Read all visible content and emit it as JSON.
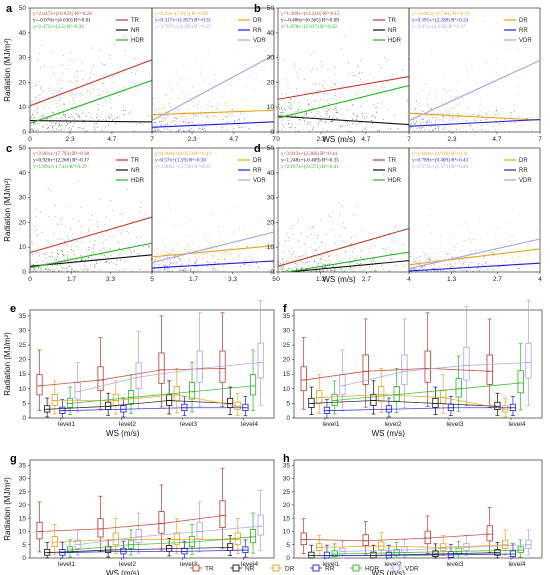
{
  "colors": {
    "TR": "#c0392b",
    "NR": "#111111",
    "DR": "#e8a317",
    "RR": "#1f1fd6",
    "HDR": "#22b822",
    "VDR": "#a9a2e8"
  },
  "chart_data": {
    "scatter_panels": [
      {
        "label": "a",
        "xlabel": "",
        "ylabel": "Radiation (MJ/m²)",
        "xlim": [
          0,
          7
        ],
        "ylim": [
          0,
          50
        ],
        "x_ticks": [
          "0",
          "2.3",
          "4.7",
          "7"
        ],
        "y_ticks": [
          "0",
          "10",
          "20",
          "30",
          "40",
          "50"
        ],
        "left": {
          "legend": [
            "TR",
            "NR",
            "HDR"
          ],
          "equations": [
            {
              "text": "y=2.647x+(10.621)  R²=0.24",
              "series": "TR"
            },
            {
              "text": "y=-0.076x+(4.636)  R²=0.01",
              "series": "NR"
            },
            {
              "text": "y=2.471x+(3.5)  R²=0.36",
              "series": "HDR"
            }
          ],
          "lines": [
            {
              "series": "TR",
              "slope": 2.647,
              "intercept": 10.6
            },
            {
              "series": "NR",
              "slope": -0.076,
              "intercept": 4.6
            },
            {
              "series": "HDR",
              "slope": 2.471,
              "intercept": 3.5
            }
          ]
        },
        "right": {
          "legend": [
            "DR",
            "RR",
            "VDR"
          ],
          "equations": [
            {
              "text": "y=0.25x+(7.011)  R²=0.05",
              "series": "DR"
            },
            {
              "text": "y=0.317x+(1.857)  R²=0.31",
              "series": "RR"
            },
            {
              "text": "y=3.787x+(4.596)  R²=0.37",
              "series": "VDR"
            }
          ],
          "lines": [
            {
              "series": "DR",
              "slope": 0.25,
              "intercept": 7.0
            },
            {
              "series": "RR",
              "slope": 0.317,
              "intercept": 1.9
            },
            {
              "series": "VDR",
              "slope": 3.787,
              "intercept": 4.6
            }
          ]
        }
      },
      {
        "label": "b",
        "xlabel": "WS (m/s)",
        "ylabel": "",
        "xlim": [
          0,
          7
        ],
        "ylim": [
          0,
          50
        ],
        "x_ticks": [
          "0",
          "2.3",
          "4.7",
          "7"
        ],
        "y_ticks": [
          "0",
          "10",
          "20",
          "30",
          "40",
          "50"
        ],
        "left": {
          "legend": [
            "TR",
            "NR",
            "HDR"
          ],
          "equations": [
            {
              "text": "y=1.309x+(13.218)  R²=0.15",
              "series": "TR"
            },
            {
              "text": "y=-0.486x+(6.365)  R²=0.09",
              "series": "NR"
            },
            {
              "text": "y=1.878x+(5.637)  R²=0.22",
              "series": "HDR"
            }
          ],
          "lines": [
            {
              "series": "TR",
              "slope": 1.309,
              "intercept": 13.2
            },
            {
              "series": "NR",
              "slope": -0.486,
              "intercept": 6.4
            },
            {
              "series": "HDR",
              "slope": 1.878,
              "intercept": 5.6
            }
          ]
        },
        "right": {
          "legend": [
            "DR",
            "RR",
            "VDR"
          ],
          "equations": [
            {
              "text": "y=-0.405x+(7.581)  R²=0.11",
              "series": "DR"
            },
            {
              "text": "y=0.391x+(2.268)  R²=0.24",
              "series": "RR"
            },
            {
              "text": "y=3.47x+(4.639)  R²=0.37",
              "series": "VDR"
            }
          ],
          "lines": [
            {
              "series": "DR",
              "slope": -0.405,
              "intercept": 7.6
            },
            {
              "series": "RR",
              "slope": 0.391,
              "intercept": 2.3
            },
            {
              "series": "VDR",
              "slope": 3.47,
              "intercept": 4.6
            }
          ]
        }
      },
      {
        "label": "c",
        "xlabel": "",
        "ylabel": "Radiation (MJ/m²)",
        "xlim": [
          0,
          5
        ],
        "ylim": [
          0,
          50
        ],
        "x_ticks": [
          "0",
          "1.7",
          "3.3",
          "5"
        ],
        "y_ticks": [
          "0",
          "10",
          "20",
          "30",
          "40",
          "50"
        ],
        "left": {
          "legend": [
            "TR",
            "NR",
            "HDR"
          ],
          "equations": [
            {
              "text": "y=2.861x+(7.793)  R²=0.38",
              "series": "TR"
            },
            {
              "text": "y=0.926x+(2.268)  R²=0.17",
              "series": "NR"
            },
            {
              "text": "y=1.99x+(1.741)  R²=0.29",
              "series": "HDR"
            }
          ],
          "lines": [
            {
              "series": "TR",
              "slope": 2.861,
              "intercept": 7.8
            },
            {
              "series": "NR",
              "slope": 0.926,
              "intercept": 2.3
            },
            {
              "series": "HDR",
              "slope": 1.99,
              "intercept": 1.7
            }
          ]
        },
        "right": {
          "legend": [
            "DR",
            "RR",
            "VDR"
          ],
          "equations": [
            {
              "text": "y=0.904x+(6.053)  R²=0.13",
              "series": "DR"
            },
            {
              "text": "y=0.57x+(1.59)  R²=0.30",
              "series": "RR"
            },
            {
              "text": "y=2.466x+(3.758)  R²=0.37",
              "series": "VDR"
            }
          ],
          "lines": [
            {
              "series": "DR",
              "slope": 0.904,
              "intercept": 6.1
            },
            {
              "series": "RR",
              "slope": 0.57,
              "intercept": 1.6
            },
            {
              "series": "VDR",
              "slope": 2.466,
              "intercept": 3.8
            }
          ]
        }
      },
      {
        "label": "d",
        "xlabel": "WS (m/s)",
        "ylabel": "",
        "xlim": [
          0,
          4
        ],
        "ylim": [
          0,
          50
        ],
        "x_ticks": [
          "0",
          "1.3",
          "2.7",
          "4"
        ],
        "y_ticks": [
          "0",
          "10",
          "20",
          "30",
          "40",
          "50"
        ],
        "left": {
          "legend": [
            "TR",
            "NR",
            "HDR"
          ],
          "equations": [
            {
              "text": "y=3.813x+(2.266)  R²=0.44",
              "series": "TR"
            },
            {
              "text": "y=1.248x+(-0.409)  R²=0.35",
              "series": "NR"
            },
            {
              "text": "y=2.167x+(-0.571)  R²=0.41",
              "series": "HDR"
            }
          ],
          "lines": [
            {
              "series": "TR",
              "slope": 3.813,
              "intercept": 2.3
            },
            {
              "series": "NR",
              "slope": 1.248,
              "intercept": -0.4
            },
            {
              "series": "HDR",
              "slope": 2.167,
              "intercept": -0.6
            }
          ]
        },
        "right": {
          "legend": [
            "DR",
            "RR",
            "VDR"
          ],
          "equations": [
            {
              "text": "y=1.604x+(2.918)  R²=0.31",
              "series": "DR"
            },
            {
              "text": "y=0.789x+(0.409)  R²=0.43",
              "series": "RR"
            },
            {
              "text": "y=2.979x+(1.373)  R²=0.40",
              "series": "VDR"
            }
          ],
          "lines": [
            {
              "series": "DR",
              "slope": 1.604,
              "intercept": 2.9
            },
            {
              "series": "RR",
              "slope": 0.789,
              "intercept": 0.4
            },
            {
              "series": "VDR",
              "slope": 2.979,
              "intercept": 1.4
            }
          ]
        }
      }
    ],
    "box_panels": [
      {
        "label": "e",
        "xlabel": "WS (m/s)",
        "ylabel": "Radiation (MJ/m²)",
        "ylim": [
          0,
          37
        ],
        "y_ticks": [
          "0",
          "5",
          "10",
          "15",
          "20",
          "25",
          "30",
          "35"
        ],
        "categories": [
          "level1",
          "level2",
          "level3",
          "level4"
        ],
        "medians": {
          "TR": [
            11,
            13,
            16.5,
            17
          ],
          "NR": [
            3,
            4,
            6,
            5
          ],
          "DR": [
            6,
            6,
            8,
            4
          ],
          "RR": [
            2.5,
            3,
            3.5,
            3.5
          ],
          "HDR": [
            5,
            7,
            9,
            11
          ],
          "VDR": [
            9,
            14,
            17,
            19
          ]
        }
      },
      {
        "label": "f",
        "xlabel": "WS (m/s)",
        "ylabel": "",
        "ylim": [
          0,
          37
        ],
        "y_ticks": [
          "0",
          "5",
          "10",
          "15",
          "20",
          "25",
          "30",
          "35"
        ],
        "categories": [
          "level1",
          "level2",
          "level3",
          "level4"
        ],
        "medians": {
          "TR": [
            13,
            16,
            17,
            16
          ],
          "NR": [
            5,
            6,
            5,
            4
          ],
          "DR": [
            7,
            8,
            7,
            3
          ],
          "RR": [
            2.5,
            3,
            3.5,
            3.5
          ],
          "HDR": [
            6,
            8,
            10,
            12
          ],
          "VDR": [
            11,
            16,
            18,
            19
          ]
        }
      },
      {
        "label": "g",
        "xlabel": "WS (m/s)",
        "ylabel": "Radiation (MJ/m²)",
        "ylim": [
          0,
          37
        ],
        "y_ticks": [
          "0",
          "5",
          "10",
          "15",
          "20",
          "25",
          "30",
          "35"
        ],
        "categories": [
          "level1",
          "level2",
          "level3",
          "level4"
        ],
        "medians": {
          "TR": [
            10,
            11,
            13,
            16
          ],
          "NR": [
            2,
            3,
            3.5,
            4
          ],
          "DR": [
            6,
            7,
            7,
            7
          ],
          "RR": [
            2,
            2.5,
            2.5,
            3
          ],
          "HDR": [
            3,
            5,
            6,
            8
          ],
          "VDR": [
            5,
            8,
            10,
            12
          ]
        }
      },
      {
        "label": "h",
        "xlabel": "WS (m/s)",
        "ylabel": "",
        "ylim": [
          0,
          37
        ],
        "y_ticks": [
          "0",
          "5",
          "10",
          "15",
          "20",
          "25",
          "30",
          "35"
        ],
        "categories": [
          "level1",
          "level2",
          "level3",
          "level4"
        ],
        "medians": {
          "TR": [
            7,
            6.5,
            7.5,
            9
          ],
          "NR": [
            1,
            1,
            1.5,
            2
          ],
          "DR": [
            4,
            4.5,
            4,
            5
          ],
          "RR": [
            1,
            1,
            1.2,
            1.5
          ],
          "HDR": [
            1.5,
            2,
            2.5,
            3
          ],
          "VDR": [
            2.5,
            3,
            4,
            5
          ]
        }
      }
    ],
    "bottom_legend": [
      "TR",
      "NR",
      "DR",
      "RR",
      "HDR",
      "VDR"
    ]
  }
}
